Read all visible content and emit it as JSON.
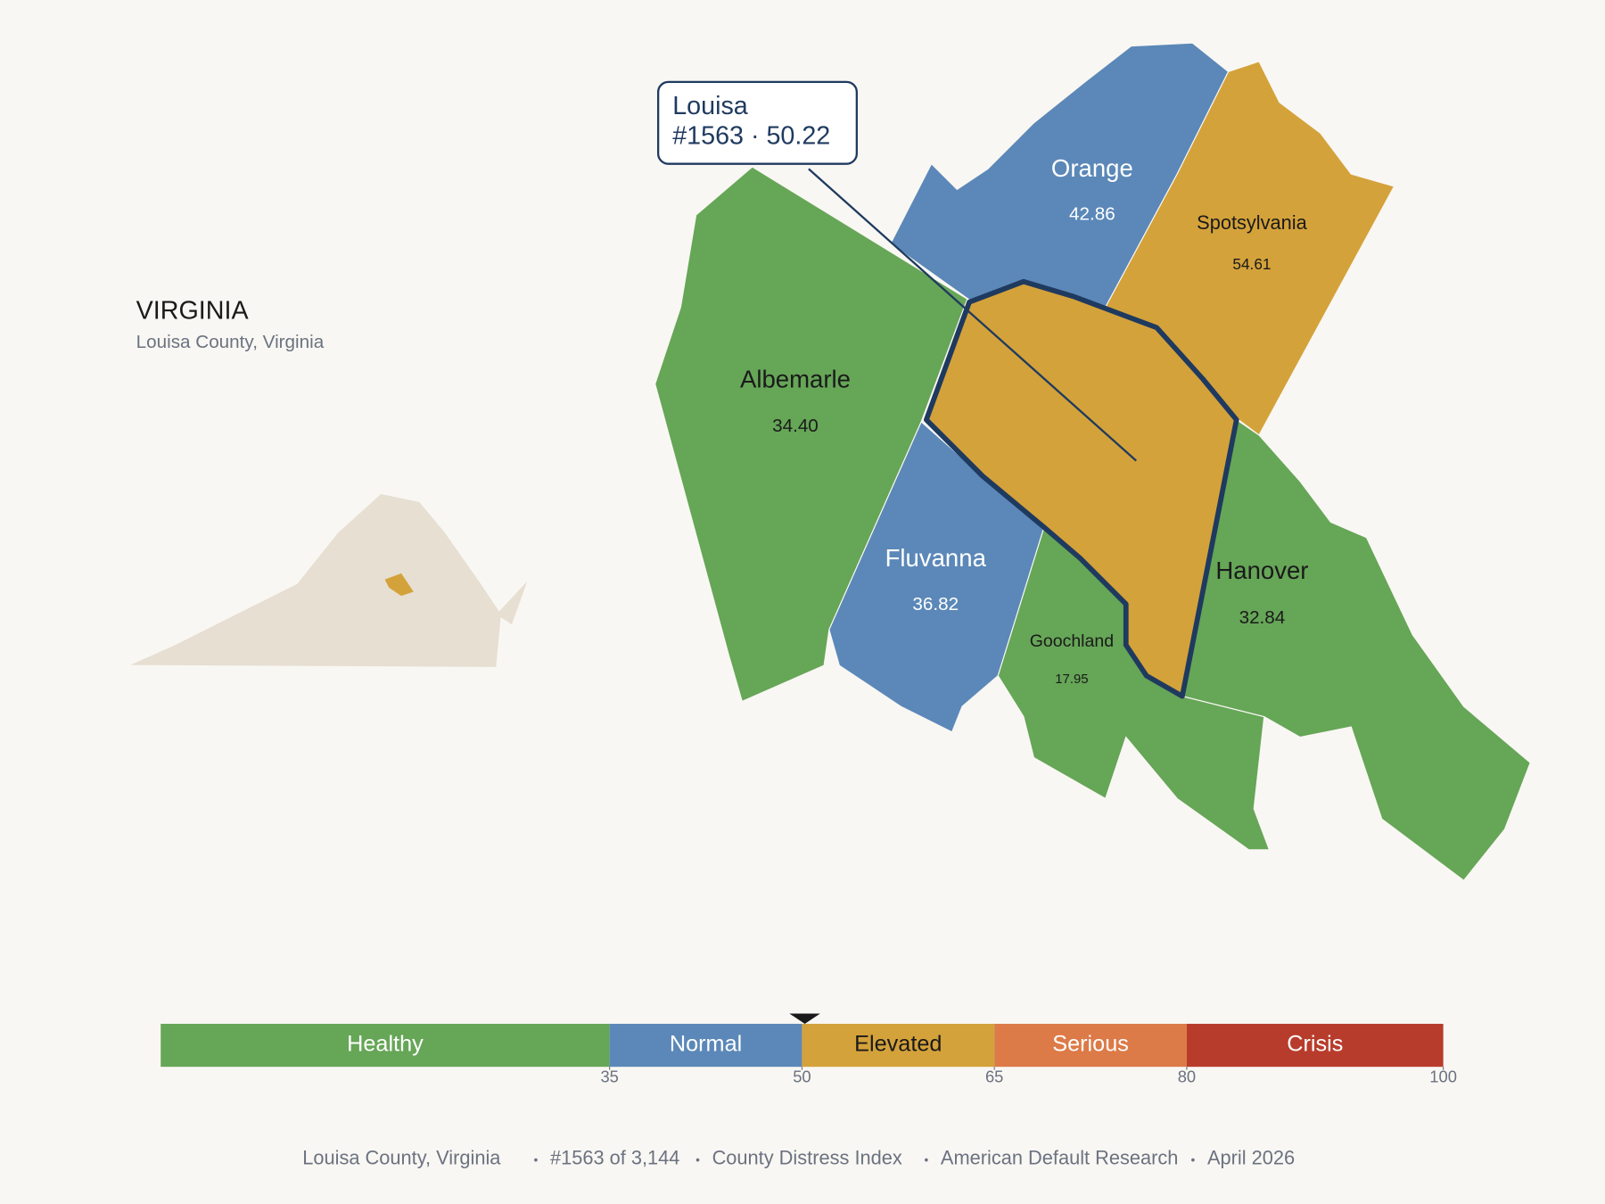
{
  "header": {
    "title": "VIRGINIA",
    "subtitle": "Louisa County, Virginia"
  },
  "callout": {
    "lines": [
      "Louisa",
      "#1563 · 50.22"
    ]
  },
  "counties": [
    {
      "name": "Orange",
      "score": "42.86",
      "color": "#5b88b8"
    },
    {
      "name": "Spotsylvania",
      "score": "54.61",
      "color": "#d4a23a"
    },
    {
      "name": "Albemarle",
      "score": "34.40",
      "color": "#66a657"
    },
    {
      "name": "Fluvanna",
      "score": "36.82",
      "color": "#5b88b8"
    },
    {
      "name": "Goochland",
      "score": "17.95",
      "color": "#66a657"
    },
    {
      "name": "Hanover",
      "score": "32.84",
      "color": "#66a657"
    }
  ],
  "scale": {
    "xlim": [
      0,
      100
    ],
    "marker": 50.22,
    "bands": [
      {
        "label": "Healthy",
        "from": 0,
        "to": 35,
        "color": "#66a657"
      },
      {
        "label": "Normal",
        "from": 35,
        "to": 50,
        "color": "#5b88b8"
      },
      {
        "label": "Elevated",
        "from": 50,
        "to": 65,
        "color": "#d4a23a"
      },
      {
        "label": "Serious",
        "from": 65,
        "to": 80,
        "color": "#dc7a48"
      },
      {
        "label": "Crisis",
        "from": 80,
        "to": 100,
        "color": "#b83c2c"
      }
    ],
    "ticks": [
      35,
      50,
      65,
      80,
      100
    ]
  },
  "footer": {
    "items": [
      "Louisa County, Virginia",
      "#1563 of 3,144",
      "County Distress Index",
      "American Default Research",
      "April 2026"
    ]
  }
}
